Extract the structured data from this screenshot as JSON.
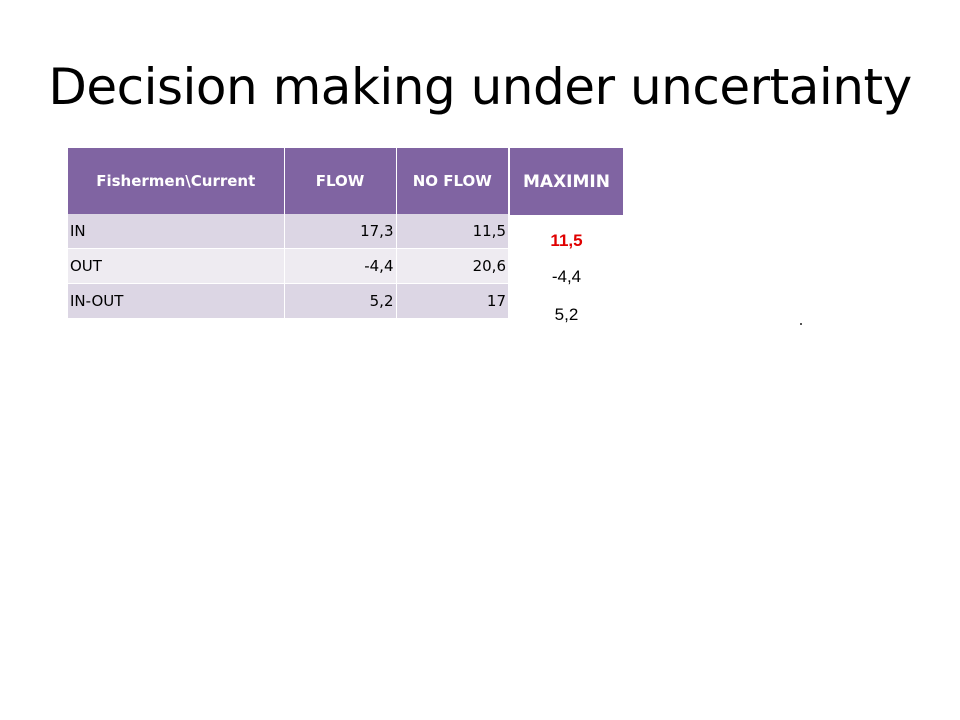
{
  "slide": {
    "title": "Decision making under uncertainty"
  },
  "table": {
    "headers": [
      "Fishermen\\Current",
      "FLOW",
      "NO FLOW"
    ],
    "rows": [
      {
        "label": "IN",
        "flow": "17,3",
        "no_flow": "11,5"
      },
      {
        "label": "OUT",
        "flow": "-4,4",
        "no_flow": "20,6"
      },
      {
        "label": "IN-OUT",
        "flow": "5,2",
        "no_flow": "17"
      }
    ]
  },
  "maximin": {
    "header": "MAXIMIN",
    "values": [
      "11,5",
      "-4,4",
      "5,2"
    ],
    "highlight_color": "#e00000",
    "header_color": "#8064a2"
  }
}
